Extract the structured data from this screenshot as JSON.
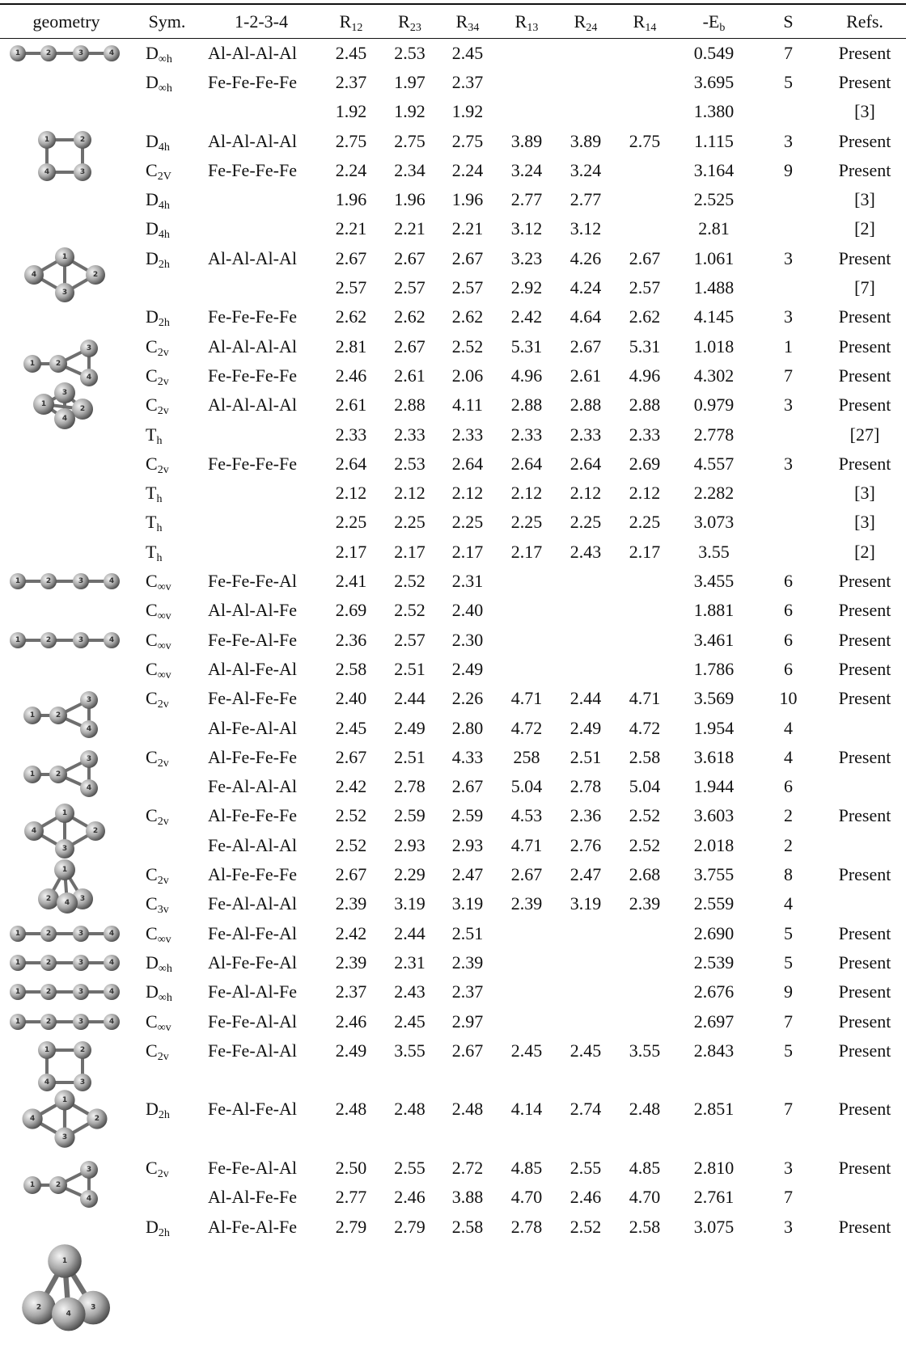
{
  "atom_labels": [
    "1",
    "2",
    "3",
    "4"
  ],
  "table": {
    "header": [
      "geometry",
      "Sym.",
      "1-2-3-4",
      {
        "base": "R",
        "sub": "12"
      },
      {
        "base": "R",
        "sub": "23"
      },
      {
        "base": "R",
        "sub": "34"
      },
      {
        "base": "R",
        "sub": "13"
      },
      {
        "base": "R",
        "sub": "24"
      },
      {
        "base": "R",
        "sub": "14"
      },
      {
        "base": "-E",
        "sub": "b"
      },
      "S",
      "Refs."
    ],
    "rows": [
      [
        {
          "base": "D",
          "sub": "∞h"
        },
        "Al-Al-Al-Al",
        "2.45",
        "2.53",
        "2.45",
        null,
        null,
        null,
        "0.549",
        "7",
        "Present"
      ],
      [
        {
          "base": "D",
          "sub": "∞h"
        },
        "Fe-Fe-Fe-Fe",
        "2.37",
        "1.97",
        "2.37",
        null,
        null,
        null,
        "3.695",
        "5",
        "Present"
      ],
      [
        null,
        null,
        "1.92",
        "1.92",
        "1.92",
        null,
        null,
        null,
        "1.380",
        null,
        "[3]"
      ],
      [
        {
          "base": "D",
          "sub": "4h"
        },
        "Al-Al-Al-Al",
        "2.75",
        "2.75",
        "2.75",
        "3.89",
        "3.89",
        "2.75",
        "1.115",
        "3",
        "Present"
      ],
      [
        {
          "base": "C",
          "sub": "2V"
        },
        "Fe-Fe-Fe-Fe",
        "2.24",
        "2.34",
        "2.24",
        "3.24",
        "3.24",
        null,
        "3.164",
        "9",
        "Present"
      ],
      [
        {
          "base": "D",
          "sub": "4h"
        },
        null,
        "1.96",
        "1.96",
        "1.96",
        "2.77",
        "2.77",
        null,
        "2.525",
        null,
        "[3]"
      ],
      [
        {
          "base": "D",
          "sub": "4h"
        },
        null,
        "2.21",
        "2.21",
        "2.21",
        "3.12",
        "3.12",
        null,
        "2.81",
        null,
        "[2]"
      ],
      [
        {
          "base": "D",
          "sub": "2h"
        },
        "Al-Al-Al-Al",
        "2.67",
        "2.67",
        "2.67",
        "3.23",
        "4.26",
        "2.67",
        "1.061",
        "3",
        "Present"
      ],
      [
        null,
        null,
        "2.57",
        "2.57",
        "2.57",
        "2.92",
        "4.24",
        "2.57",
        "1.488",
        null,
        "[7]"
      ],
      [
        {
          "base": "D",
          "sub": "2h"
        },
        "Fe-Fe-Fe-Fe",
        "2.62",
        "2.62",
        "2.62",
        "2.42",
        "4.64",
        "2.62",
        "4.145",
        "3",
        "Present"
      ],
      [
        {
          "base": "C",
          "sub": "2v"
        },
        "Al-Al-Al-Al",
        "2.81",
        "2.67",
        "2.52",
        "5.31",
        "2.67",
        "5.31",
        "1.018",
        "1",
        "Present"
      ],
      [
        {
          "base": "C",
          "sub": "2v"
        },
        "Fe-Fe-Fe-Fe",
        "2.46",
        "2.61",
        "2.06",
        "4.96",
        "2.61",
        "4.96",
        "4.302",
        "7",
        "Present"
      ],
      [
        {
          "base": "C",
          "sub": "2v"
        },
        "Al-Al-Al-Al",
        "2.61",
        "2.88",
        "4.11",
        "2.88",
        "2.88",
        "2.88",
        "0.979",
        "3",
        "Present"
      ],
      [
        {
          "base": "T",
          "sub": "h"
        },
        null,
        "2.33",
        "2.33",
        "2.33",
        "2.33",
        "2.33",
        "2.33",
        "2.778",
        null,
        "[27]"
      ],
      [
        {
          "base": "C",
          "sub": "2v"
        },
        "Fe-Fe-Fe-Fe",
        "2.64",
        "2.53",
        "2.64",
        "2.64",
        "2.64",
        "2.69",
        "4.557",
        "3",
        "Present"
      ],
      [
        {
          "base": "T",
          "sub": "h"
        },
        null,
        "2.12",
        "2.12",
        "2.12",
        "2.12",
        "2.12",
        "2.12",
        "2.282",
        null,
        "[3]"
      ],
      [
        {
          "base": "T",
          "sub": "h"
        },
        null,
        "2.25",
        "2.25",
        "2.25",
        "2.25",
        "2.25",
        "2.25",
        "3.073",
        null,
        "[3]"
      ],
      [
        {
          "base": "T",
          "sub": "h"
        },
        null,
        "2.17",
        "2.17",
        "2.17",
        "2.17",
        "2.43",
        "2.17",
        "3.55",
        null,
        "[2]"
      ],
      [
        {
          "base": "C",
          "sub": "∞v"
        },
        "Fe-Fe-Fe-Al",
        "2.41",
        "2.52",
        "2.31",
        null,
        null,
        null,
        "3.455",
        "6",
        "Present"
      ],
      [
        {
          "base": "C",
          "sub": "∞v"
        },
        "Al-Al-Al-Fe",
        "2.69",
        "2.52",
        "2.40",
        null,
        null,
        null,
        "1.881",
        "6",
        "Present"
      ],
      [
        {
          "base": "C",
          "sub": "∞v"
        },
        "Fe-Fe-Al-Fe",
        "2.36",
        "2.57",
        "2.30",
        null,
        null,
        null,
        "3.461",
        "6",
        "Present"
      ],
      [
        {
          "base": "C",
          "sub": "∞v"
        },
        "Al-Al-Fe-Al",
        "2.58",
        "2.51",
        "2.49",
        null,
        null,
        null,
        "1.786",
        "6",
        "Present"
      ],
      [
        {
          "base": "C",
          "sub": "2v"
        },
        "Fe-Al-Fe-Fe",
        "2.40",
        "2.44",
        "2.26",
        "4.71",
        "2.44",
        "4.71",
        "3.569",
        "10",
        "Present"
      ],
      [
        null,
        "Al-Fe-Al-Al",
        "2.45",
        "2.49",
        "2.80",
        "4.72",
        "2.49",
        "4.72",
        "1.954",
        "4",
        null
      ],
      [
        {
          "base": "C",
          "sub": "2v"
        },
        "Al-Fe-Fe-Fe",
        "2.67",
        "2.51",
        "4.33",
        "258",
        "2.51",
        "2.58",
        "3.618",
        "4",
        "Present"
      ],
      [
        null,
        "Fe-Al-Al-Al",
        "2.42",
        "2.78",
        "2.67",
        "5.04",
        "2.78",
        "5.04",
        "1.944",
        "6",
        null
      ],
      [
        {
          "base": "C",
          "sub": "2v"
        },
        "Al-Fe-Fe-Fe",
        "2.52",
        "2.59",
        "2.59",
        "4.53",
        "2.36",
        "2.52",
        "3.603",
        "2",
        "Present"
      ],
      [
        null,
        "Fe-Al-Al-Al",
        "2.52",
        "2.93",
        "2.93",
        "4.71",
        "2.76",
        "2.52",
        "2.018",
        "2",
        null
      ],
      [
        {
          "base": "C",
          "sub": "2v"
        },
        "Al-Fe-Fe-Fe",
        "2.67",
        "2.29",
        "2.47",
        "2.67",
        "2.47",
        "2.68",
        "3.755",
        "8",
        "Present"
      ],
      [
        {
          "base": "C",
          "sub": "3v"
        },
        "Fe-Al-Al-Al",
        "2.39",
        "3.19",
        "3.19",
        "2.39",
        "3.19",
        "2.39",
        "2.559",
        "4",
        null
      ],
      [
        {
          "base": "C",
          "sub": "∞v"
        },
        "Fe-Al-Fe-Al",
        "2.42",
        "2.44",
        "2.51",
        null,
        null,
        null,
        "2.690",
        "5",
        "Present"
      ],
      [
        {
          "base": "D",
          "sub": "∞h"
        },
        "Al-Fe-Fe-Al",
        "2.39",
        "2.31",
        "2.39",
        null,
        null,
        null,
        "2.539",
        "5",
        "Present"
      ],
      [
        {
          "base": "D",
          "sub": "∞h"
        },
        "Fe-Al-Al-Fe",
        "2.37",
        "2.43",
        "2.37",
        null,
        null,
        null,
        "2.676",
        "9",
        "Present"
      ],
      [
        {
          "base": "C",
          "sub": "∞v"
        },
        "Fe-Fe-Al-Al",
        "2.46",
        "2.45",
        "2.97",
        null,
        null,
        null,
        "2.697",
        "7",
        "Present"
      ],
      [
        {
          "base": "C",
          "sub": "2v"
        },
        "Fe-Fe-Al-Al",
        "2.49",
        "3.55",
        "2.67",
        "2.45",
        "2.45",
        "3.55",
        "2.843",
        "5",
        "Present"
      ],
      [
        {
          "base": "D",
          "sub": "2h"
        },
        "Fe-Al-Fe-Al",
        "2.48",
        "2.48",
        "2.48",
        "4.14",
        "2.74",
        "2.48",
        "2.851",
        "7",
        "Present"
      ],
      [
        {
          "base": "C",
          "sub": "2v"
        },
        "Fe-Fe-Al-Al",
        "2.50",
        "2.55",
        "2.72",
        "4.85",
        "2.55",
        "4.85",
        "2.810",
        "3",
        "Present"
      ],
      [
        null,
        "Al-Al-Fe-Fe",
        "2.77",
        "2.46",
        "3.88",
        "4.70",
        "2.46",
        "4.70",
        "2.761",
        "7",
        null
      ],
      [
        {
          "base": "D",
          "sub": "2h"
        },
        "Al-Fe-Al-Fe",
        "2.79",
        "2.79",
        "2.58",
        "2.78",
        "2.52",
        "2.58",
        "3.075",
        "3",
        "Present"
      ]
    ]
  }
}
